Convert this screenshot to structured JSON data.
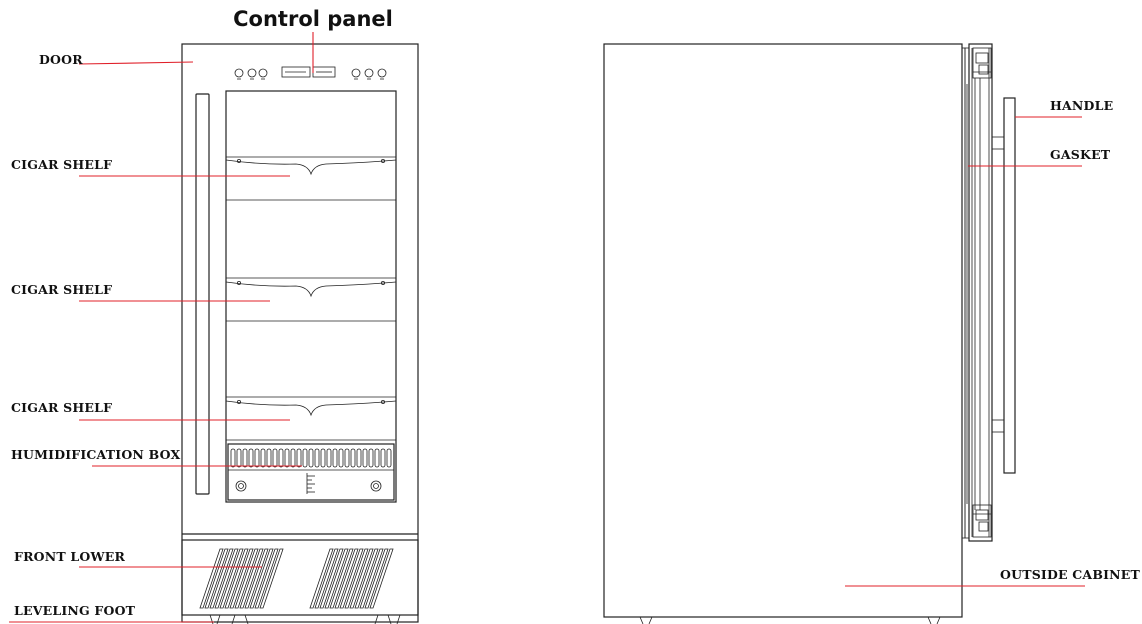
{
  "diagram": {
    "title": "Control panel",
    "labels": {
      "door": "DOOR",
      "cigar_shelf_1": "CIGAR SHELF",
      "cigar_shelf_2": "CIGAR SHELF",
      "cigar_shelf_3": "CIGAR SHELF",
      "humidification_box": "HUMIDIFICATION BOX",
      "front_lower": "FRONT LOWER",
      "leveling_foot": "LEVELING FOOT",
      "handle": "HANDLE",
      "gasket": "GASKET",
      "outside_cabinet": "OUTSIDE CABINET"
    },
    "colors": {
      "leader_line": "#e0202a",
      "drawing_line": "#222222",
      "background": "#ffffff"
    }
  }
}
